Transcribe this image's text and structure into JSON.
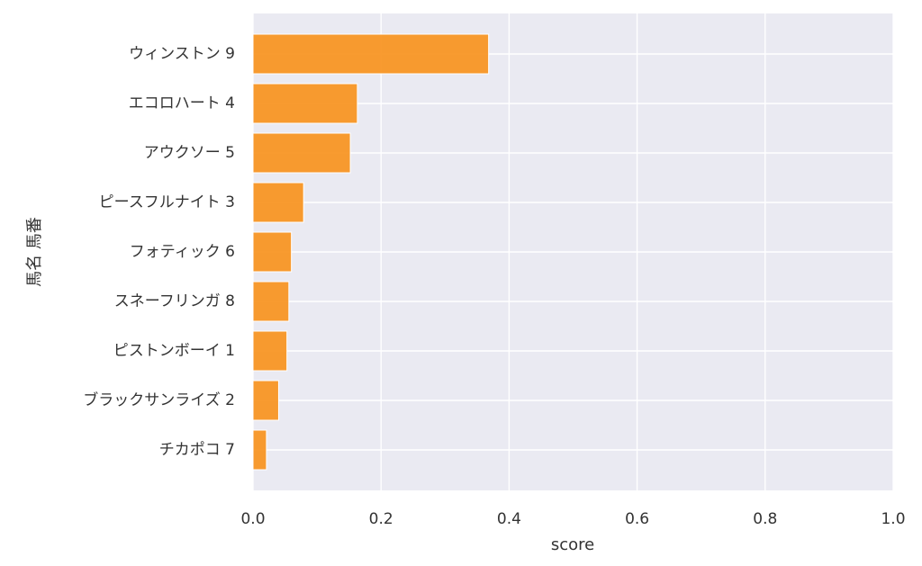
{
  "chart_data": {
    "type": "bar",
    "orientation": "horizontal",
    "categories": [
      "ウィンストン 9",
      "エコロハート 4",
      "アウクソー 5",
      "ピースフルナイト 3",
      "フォティック 6",
      "スネーフリンガ 8",
      "ピストンボーイ 1",
      "ブラックサンライズ 2",
      "チカポコ 7"
    ],
    "values": [
      0.368,
      0.163,
      0.152,
      0.079,
      0.06,
      0.056,
      0.053,
      0.04,
      0.021
    ],
    "xlabel": "score",
    "ylabel": "馬名 馬番",
    "xlim": [
      0,
      1.0
    ],
    "xticks": [
      "0.0",
      "0.2",
      "0.4",
      "0.6",
      "0.8",
      "1.0"
    ],
    "grid": true,
    "colors": {
      "bar": "#f7931e",
      "bar_edge": "#ffffff",
      "plot_bg": "#eaeaf2",
      "grid": "#ffffff"
    }
  }
}
